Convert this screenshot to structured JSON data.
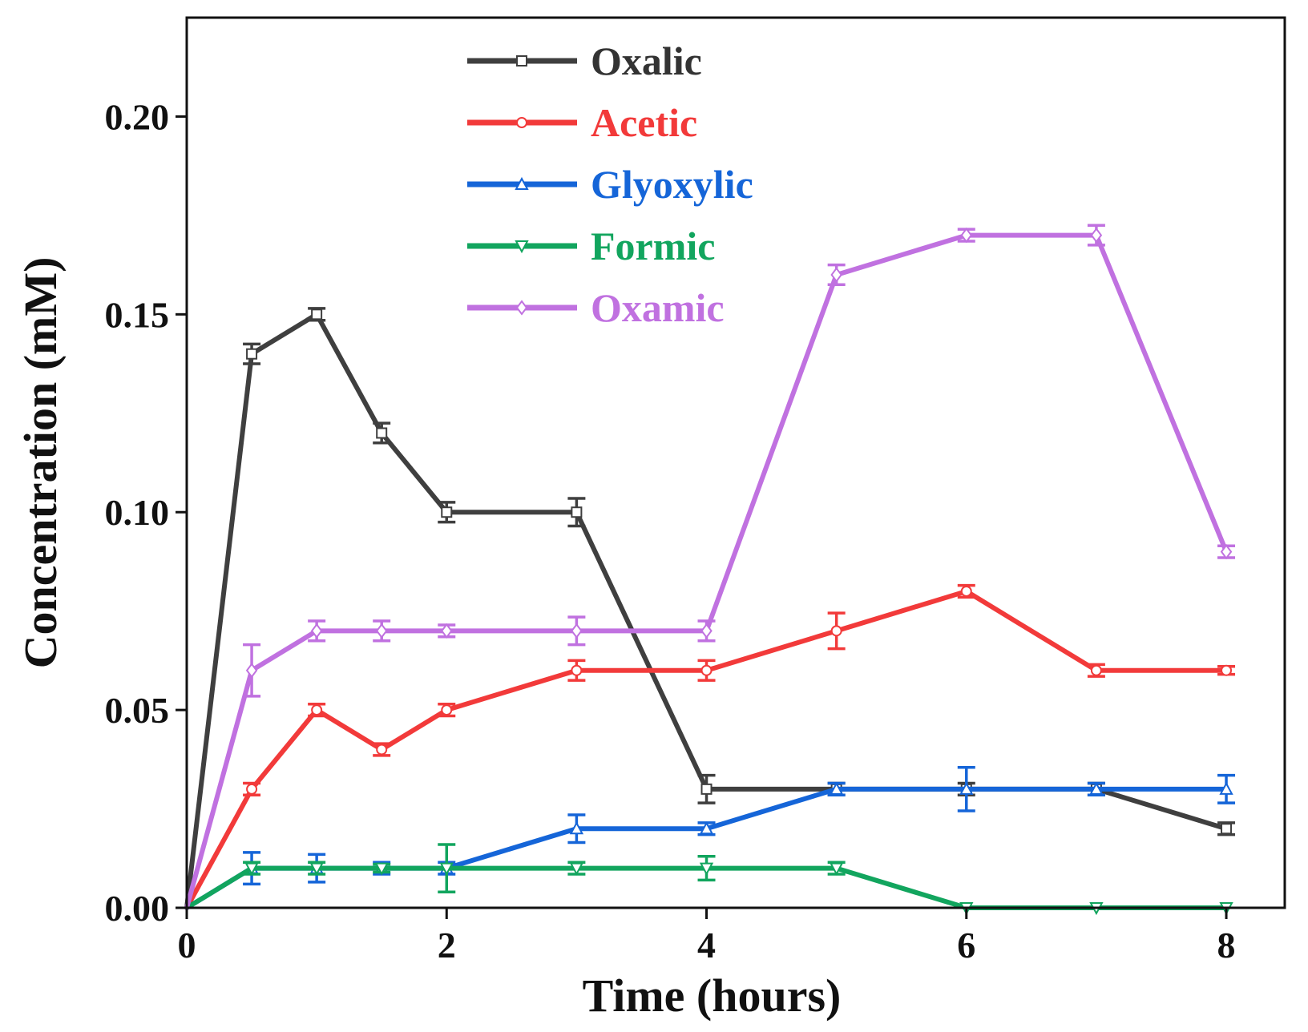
{
  "chart_data": {
    "type": "line",
    "xlabel": "Time (hours)",
    "ylabel": "Concentration (mM)",
    "xlim": [
      0,
      8.45
    ],
    "ylim": [
      0,
      0.225
    ],
    "xticks": [
      0,
      2,
      4,
      6,
      8
    ],
    "xtick_labels": [
      "0",
      "2",
      "4",
      "6",
      "8"
    ],
    "yticks": [
      0,
      0.05,
      0.1,
      0.15,
      0.2
    ],
    "ytick_labels": [
      "0.00",
      "0.05",
      "0.10",
      "0.15",
      "0.20"
    ],
    "legend_position": "top-center",
    "grid": false,
    "x": [
      0,
      0.5,
      1,
      1.5,
      2,
      3,
      4,
      5,
      6,
      7,
      8
    ],
    "series": [
      {
        "name": "Oxalic",
        "color": "#3f3f3f",
        "marker": "square",
        "values": [
          0,
          0.14,
          0.15,
          0.12,
          0.1,
          0.1,
          0.03,
          0.03,
          0.03,
          0.03,
          0.02
        ],
        "errors": [
          0,
          0.0025,
          0.0015,
          0.0025,
          0.0025,
          0.0035,
          0.0035,
          0.0015,
          0.0015,
          0.0015,
          0.0015
        ]
      },
      {
        "name": "Acetic",
        "color": "#f23a3a",
        "marker": "circle",
        "values": [
          0,
          0.03,
          0.05,
          0.04,
          0.05,
          0.06,
          0.06,
          0.07,
          0.08,
          0.06,
          0.06
        ],
        "errors": [
          0,
          0.0015,
          0.0015,
          0.0015,
          0.0015,
          0.0025,
          0.0025,
          0.0045,
          0.0015,
          0.0015,
          0.001
        ]
      },
      {
        "name": "Glyoxylic",
        "color": "#1565d8",
        "marker": "triangle-up",
        "values": [
          0,
          0.01,
          0.01,
          0.01,
          0.01,
          0.02,
          0.02,
          0.03,
          0.03,
          0.03,
          0.03
        ],
        "errors": [
          0,
          0.004,
          0.0035,
          0.0015,
          0.0015,
          0.0035,
          0.0015,
          0.0015,
          0.0055,
          0.0015,
          0.0035
        ]
      },
      {
        "name": "Formic",
        "color": "#12a55e",
        "marker": "triangle-down",
        "values": [
          0,
          0.01,
          0.01,
          0.01,
          0.01,
          0.01,
          0.01,
          0.01,
          0,
          0,
          0
        ],
        "errors": [
          0,
          0.0015,
          0.0015,
          0.001,
          0.006,
          0.0015,
          0.003,
          0.0015,
          0,
          0,
          0
        ]
      },
      {
        "name": "Oxamic",
        "color": "#c071e0",
        "marker": "diamond",
        "values": [
          0,
          0.06,
          0.07,
          0.07,
          0.07,
          0.07,
          0.07,
          0.16,
          0.17,
          0.17,
          0.09
        ],
        "errors": [
          0,
          0.0065,
          0.0025,
          0.0025,
          0.0015,
          0.0035,
          0.0025,
          0.0025,
          0.0015,
          0.0025,
          0.0015
        ]
      }
    ]
  }
}
